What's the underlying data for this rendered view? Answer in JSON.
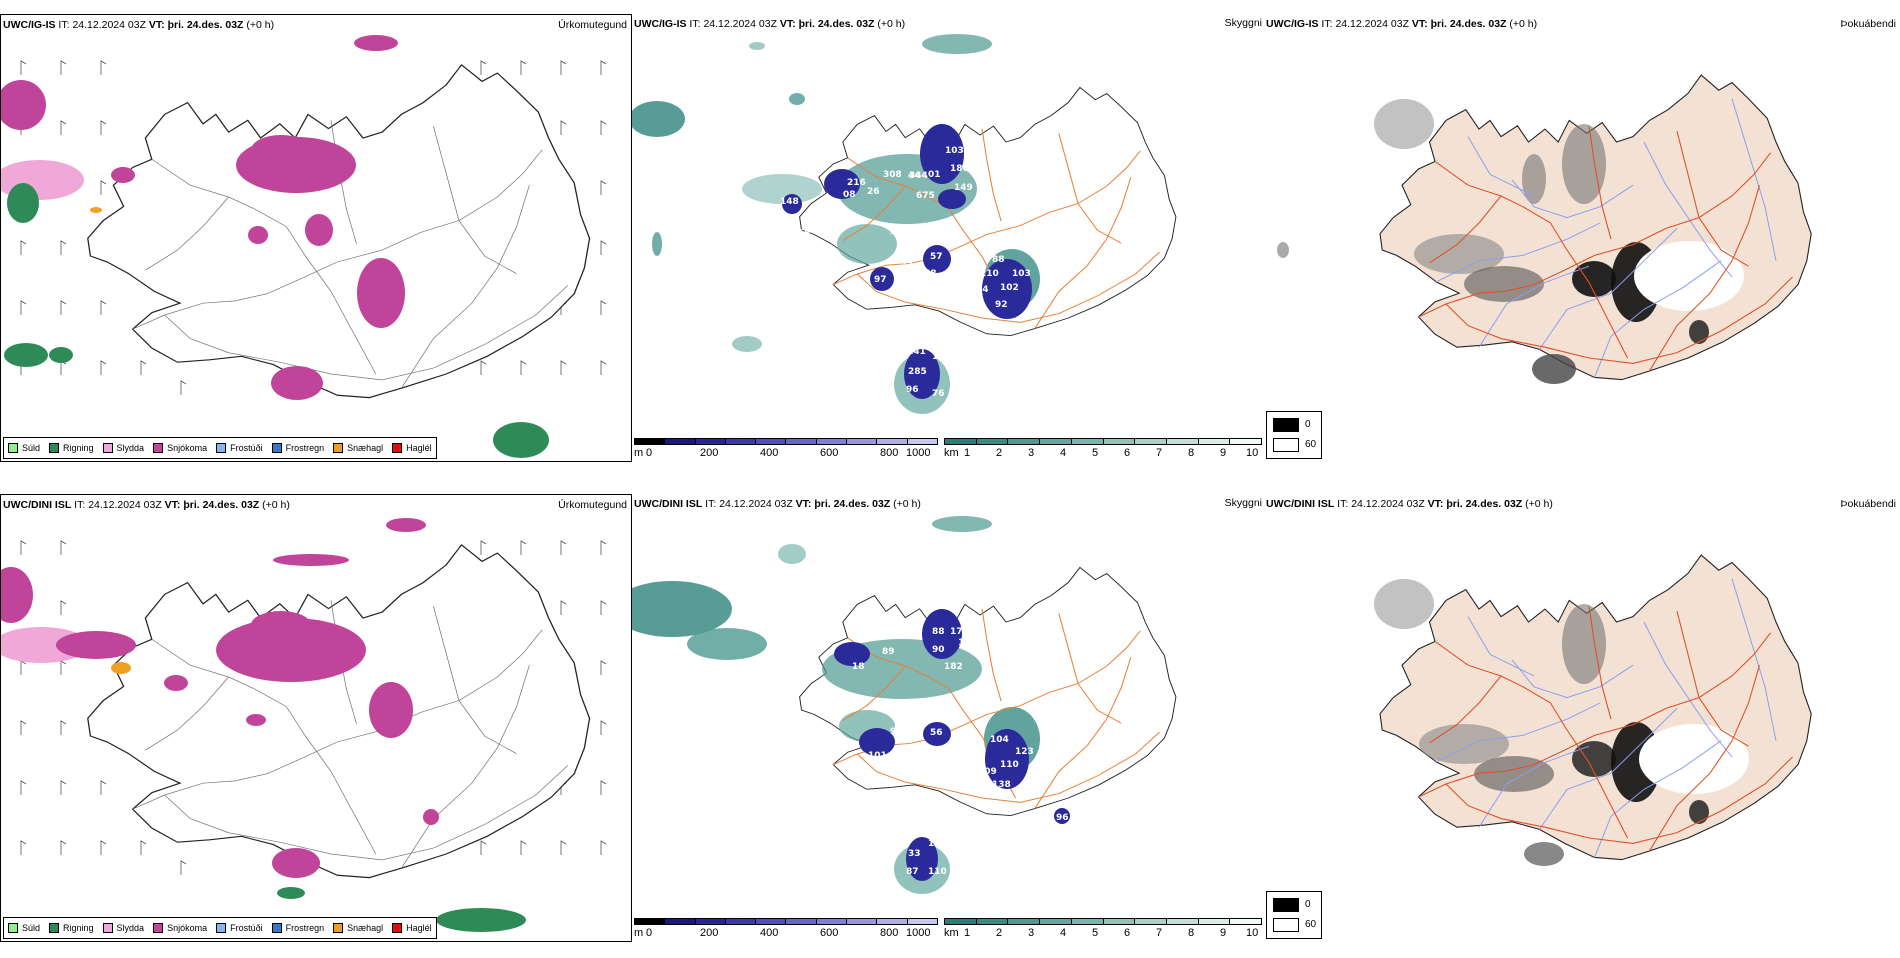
{
  "rows": [
    {
      "model": "UWC/IG-IS",
      "it_label": "IT:",
      "it_value": "24.12.2024 03Z",
      "vt_label": "VT:",
      "vt_value": "þri. 24.des. 03Z",
      "lead": "(+0 h)",
      "hail_numbers": [
        "103",
        "186",
        "36",
        "44",
        "149",
        "91",
        "08",
        "216",
        "308",
        "344",
        "01",
        "26",
        "675",
        "148",
        "18",
        "334",
        "57",
        "88",
        "210",
        "103",
        "97",
        "77",
        "68",
        "102",
        "44",
        "92",
        "141",
        "161",
        "285",
        "96",
        "76",
        "6"
      ]
    },
    {
      "model": "UWC/DINI ISL",
      "it_label": "IT:",
      "it_value": "24.12.2024 03Z",
      "vt_label": "VT:",
      "vt_value": "þri. 24.des. 03Z",
      "lead": "(+0 h)",
      "hail_numbers": [
        "88",
        "177",
        "90",
        "197",
        "182",
        "18",
        "89",
        "280",
        "92",
        "56",
        "101",
        "104",
        "123",
        "109",
        "110",
        "138",
        "11",
        "33",
        "115",
        "87",
        "110",
        "96"
      ]
    }
  ],
  "panels": {
    "precip_type_title": "Úrkomutegund",
    "cloud_base_title": "Skyggni",
    "cloud_cover_title": "Þokuábendi"
  },
  "precip_legend": [
    {
      "label": "Súld",
      "color": "#90ee90"
    },
    {
      "label": "Rigning",
      "color": "#2e8b57"
    },
    {
      "label": "Slydda",
      "color": "#f0a8d8"
    },
    {
      "label": "Snjókoma",
      "color": "#c0449a"
    },
    {
      "label": "Frostúði",
      "color": "#87b5f0"
    },
    {
      "label": "Frostregn",
      "color": "#3878c8"
    },
    {
      "label": "Snæhagl",
      "color": "#f0a020"
    },
    {
      "label": "Haglél",
      "color": "#e01010"
    }
  ],
  "height_scale": {
    "unit": "m",
    "ticks": [
      "0",
      "200",
      "400",
      "600",
      "800",
      "1000"
    ],
    "colors": [
      "#000000",
      "#1a1a7a",
      "#26269a",
      "#3a3aaa",
      "#5050b8",
      "#6868c4",
      "#8080d0",
      "#9898da",
      "#b0b0e4",
      "#c8c8ee"
    ]
  },
  "visibility_scale": {
    "unit": "km",
    "ticks": [
      "1",
      "2",
      "3",
      "4",
      "5",
      "6",
      "7",
      "8",
      "9",
      "10"
    ],
    "colors": [
      "#2a8078",
      "#3a8c84",
      "#4e9a92",
      "#64a8a0",
      "#7ab6ae",
      "#92c4bc",
      "#aad2cc",
      "#c2e0da",
      "#daeee8",
      "#f2faf8"
    ]
  },
  "fog_legend": {
    "values": [
      "0",
      "60"
    ],
    "colors": [
      "#000000",
      "#ffffff"
    ]
  }
}
